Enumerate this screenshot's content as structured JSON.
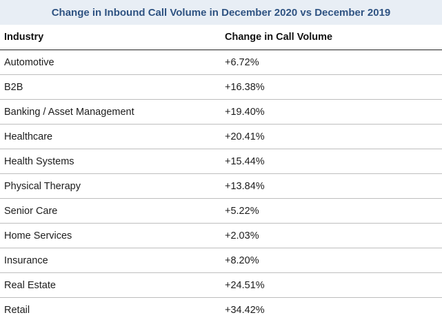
{
  "chart_data": {
    "type": "table",
    "title": "Change in Inbound Call Volume in December 2020 vs December 2019",
    "columns": [
      "Industry",
      "Change in Call Volume"
    ],
    "rows": [
      {
        "industry": "Automotive",
        "change": "+6.72%"
      },
      {
        "industry": "B2B",
        "change": "+16.38%"
      },
      {
        "industry": "Banking / Asset Management",
        "change": "+19.40%"
      },
      {
        "industry": "Healthcare",
        "change": "+20.41%"
      },
      {
        "industry": "Health Systems",
        "change": "+15.44%"
      },
      {
        "industry": "Physical Therapy",
        "change": "+13.84%"
      },
      {
        "industry": "Senior Care",
        "change": "+5.22%"
      },
      {
        "industry": "Home Services",
        "change": "+2.03%"
      },
      {
        "industry": "Insurance",
        "change": "+8.20%"
      },
      {
        "industry": "Real Estate",
        "change": "+24.51%"
      },
      {
        "industry": "Retail",
        "change": "+34.42%"
      }
    ],
    "values": [
      6.72,
      16.38,
      19.4,
      20.41,
      15.44,
      13.84,
      5.22,
      2.03,
      8.2,
      24.51,
      34.42
    ]
  },
  "colors": {
    "title_background": "#e8eef5",
    "title_text": "#2f5382",
    "header_rule": "#222222",
    "row_rule": "#bdbdbd"
  }
}
